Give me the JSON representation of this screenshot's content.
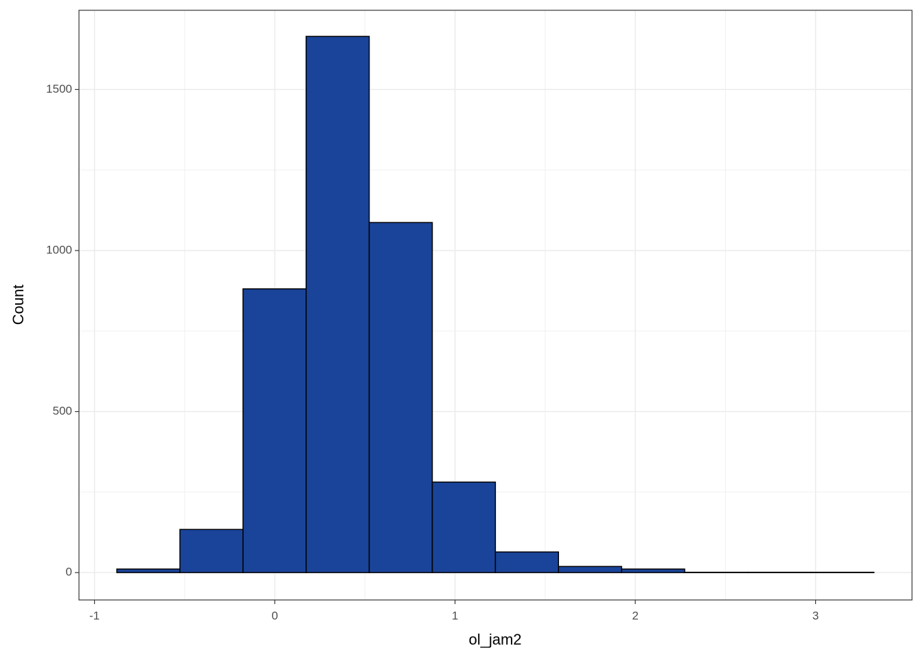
{
  "chart_data": {
    "type": "histogram",
    "x_label": "ol_jam2",
    "y_label": "Count",
    "bins": [
      -0.876,
      -0.526,
      -0.176,
      0.174,
      0.524,
      0.874,
      1.224,
      1.574,
      1.924,
      2.274,
      2.624,
      2.974,
      3.324
    ],
    "values": [
      11,
      134,
      881,
      1665,
      1087,
      281,
      64,
      19,
      11,
      1,
      1,
      1
    ],
    "color": "#1a4499",
    "edge_color": "#000000",
    "xlim": [
      -1.086,
      3.535
    ],
    "xticks": [
      -1,
      0,
      1,
      2,
      3
    ],
    "ylim": [
      -85,
      1746
    ],
    "yticks": [
      0,
      500,
      1000,
      1500
    ],
    "grid": true,
    "minor_grid": true
  }
}
